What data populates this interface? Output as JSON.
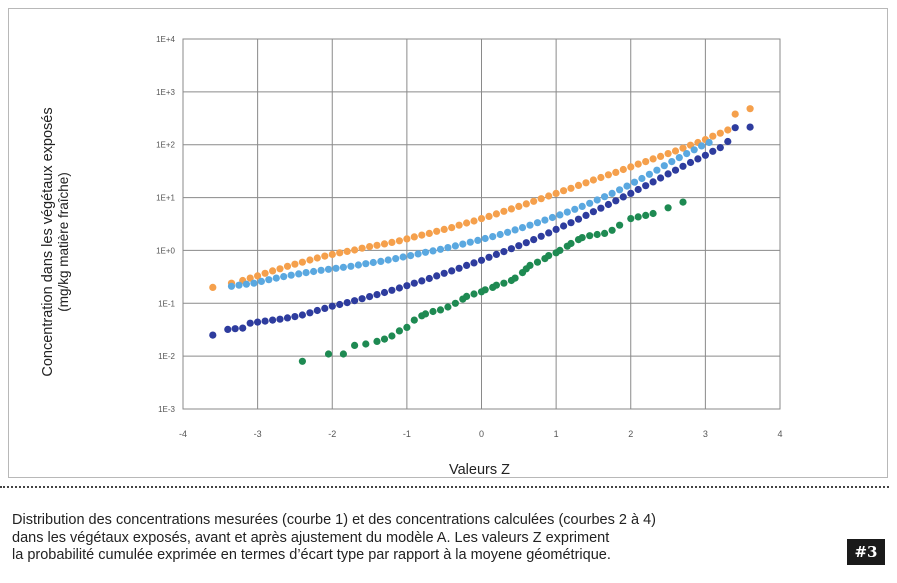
{
  "chart_data": {
    "type": "scatter",
    "title": "",
    "xlabel": "Valeurs Z",
    "ylabel_line1": "Concentration dans les végétaux exposés",
    "ylabel_line2": "(mg/kg matière fraîche)",
    "xlim": [
      -4,
      4
    ],
    "ylim": [
      0.001,
      10000
    ],
    "y_scale": "log",
    "grid": true,
    "legend": "none",
    "x_ticks": [
      "-4",
      "-3",
      "-2",
      "-1",
      "0",
      "1",
      "2",
      "3",
      "4"
    ],
    "y_ticks": [
      "1E-3",
      "1E-2",
      "1E-1",
      "1E+0",
      "1E+1",
      "1E+2",
      "1E+3",
      "1E+4"
    ],
    "series": [
      {
        "color": "#f5a04c",
        "points": [
          [
            -3.6,
            0.2
          ],
          [
            -3.35,
            0.24
          ],
          [
            -3.2,
            0.27
          ],
          [
            -3.1,
            0.3
          ],
          [
            -3.0,
            0.33
          ],
          [
            -2.9,
            0.37
          ],
          [
            -2.8,
            0.41
          ],
          [
            -2.7,
            0.45
          ],
          [
            -2.6,
            0.5
          ],
          [
            -2.5,
            0.55
          ],
          [
            -2.4,
            0.6
          ],
          [
            -2.3,
            0.66
          ],
          [
            -2.2,
            0.72
          ],
          [
            -2.1,
            0.78
          ],
          [
            -2.0,
            0.84
          ],
          [
            -1.9,
            0.9
          ],
          [
            -1.8,
            0.96
          ],
          [
            -1.7,
            1.02
          ],
          [
            -1.6,
            1.1
          ],
          [
            -1.5,
            1.18
          ],
          [
            -1.4,
            1.25
          ],
          [
            -1.3,
            1.33
          ],
          [
            -1.2,
            1.42
          ],
          [
            -1.1,
            1.52
          ],
          [
            -1.0,
            1.65
          ],
          [
            -0.9,
            1.8
          ],
          [
            -0.8,
            1.95
          ],
          [
            -0.7,
            2.1
          ],
          [
            -0.6,
            2.3
          ],
          [
            -0.5,
            2.5
          ],
          [
            -0.4,
            2.7
          ],
          [
            -0.3,
            3.0
          ],
          [
            -0.2,
            3.3
          ],
          [
            -0.1,
            3.6
          ],
          [
            0.0,
            4.0
          ],
          [
            0.1,
            4.4
          ],
          [
            0.2,
            4.9
          ],
          [
            0.3,
            5.5
          ],
          [
            0.4,
            6.1
          ],
          [
            0.5,
            6.8
          ],
          [
            0.6,
            7.6
          ],
          [
            0.7,
            8.5
          ],
          [
            0.8,
            9.5
          ],
          [
            0.9,
            10.7
          ],
          [
            1.0,
            12
          ],
          [
            1.1,
            13.5
          ],
          [
            1.2,
            15
          ],
          [
            1.3,
            17
          ],
          [
            1.4,
            19
          ],
          [
            1.5,
            21.5
          ],
          [
            1.6,
            24
          ],
          [
            1.7,
            27
          ],
          [
            1.8,
            30
          ],
          [
            1.9,
            34
          ],
          [
            2.0,
            38
          ],
          [
            2.1,
            43
          ],
          [
            2.2,
            48
          ],
          [
            2.3,
            54
          ],
          [
            2.4,
            60
          ],
          [
            2.5,
            68
          ],
          [
            2.6,
            76
          ],
          [
            2.7,
            86
          ],
          [
            2.8,
            98
          ],
          [
            2.9,
            110
          ],
          [
            3.0,
            125
          ],
          [
            3.1,
            145
          ],
          [
            3.2,
            165
          ],
          [
            3.3,
            190
          ],
          [
            3.4,
            380
          ],
          [
            3.6,
            480
          ]
        ]
      },
      {
        "color": "#5aa8e0",
        "points": [
          [
            -3.35,
            0.21
          ],
          [
            -3.25,
            0.22
          ],
          [
            -3.15,
            0.23
          ],
          [
            -3.05,
            0.24
          ],
          [
            -2.95,
            0.26
          ],
          [
            -2.85,
            0.28
          ],
          [
            -2.75,
            0.3
          ],
          [
            -2.65,
            0.32
          ],
          [
            -2.55,
            0.34
          ],
          [
            -2.45,
            0.36
          ],
          [
            -2.35,
            0.38
          ],
          [
            -2.25,
            0.4
          ],
          [
            -2.15,
            0.42
          ],
          [
            -2.05,
            0.44
          ],
          [
            -1.95,
            0.46
          ],
          [
            -1.85,
            0.48
          ],
          [
            -1.75,
            0.5
          ],
          [
            -1.65,
            0.53
          ],
          [
            -1.55,
            0.56
          ],
          [
            -1.45,
            0.59
          ],
          [
            -1.35,
            0.62
          ],
          [
            -1.25,
            0.66
          ],
          [
            -1.15,
            0.7
          ],
          [
            -1.05,
            0.75
          ],
          [
            -0.95,
            0.8
          ],
          [
            -0.85,
            0.86
          ],
          [
            -0.75,
            0.92
          ],
          [
            -0.65,
            0.98
          ],
          [
            -0.55,
            1.05
          ],
          [
            -0.45,
            1.13
          ],
          [
            -0.35,
            1.22
          ],
          [
            -0.25,
            1.32
          ],
          [
            -0.15,
            1.43
          ],
          [
            -0.05,
            1.55
          ],
          [
            0.05,
            1.68
          ],
          [
            0.15,
            1.83
          ],
          [
            0.25,
            2.0
          ],
          [
            0.35,
            2.2
          ],
          [
            0.45,
            2.45
          ],
          [
            0.55,
            2.7
          ],
          [
            0.65,
            3.0
          ],
          [
            0.75,
            3.35
          ],
          [
            0.85,
            3.75
          ],
          [
            0.95,
            4.2
          ],
          [
            1.05,
            4.7
          ],
          [
            1.15,
            5.3
          ],
          [
            1.25,
            6.0
          ],
          [
            1.35,
            6.8
          ],
          [
            1.45,
            7.8
          ],
          [
            1.55,
            9.0
          ],
          [
            1.65,
            10.4
          ],
          [
            1.75,
            12
          ],
          [
            1.85,
            14
          ],
          [
            1.95,
            16.5
          ],
          [
            2.05,
            19.5
          ],
          [
            2.15,
            23
          ],
          [
            2.25,
            27.5
          ],
          [
            2.35,
            33
          ],
          [
            2.45,
            40
          ],
          [
            2.55,
            48
          ],
          [
            2.65,
            57
          ],
          [
            2.75,
            68
          ],
          [
            2.85,
            80
          ],
          [
            2.95,
            95
          ],
          [
            3.05,
            110
          ]
        ]
      },
      {
        "color": "#2e3c9e",
        "points": [
          [
            -3.6,
            0.025
          ],
          [
            -3.4,
            0.032
          ],
          [
            -3.3,
            0.033
          ],
          [
            -3.2,
            0.034
          ],
          [
            -3.1,
            0.042
          ],
          [
            -3.0,
            0.044
          ],
          [
            -2.9,
            0.046
          ],
          [
            -2.8,
            0.048
          ],
          [
            -2.7,
            0.05
          ],
          [
            -2.6,
            0.053
          ],
          [
            -2.5,
            0.056
          ],
          [
            -2.4,
            0.06
          ],
          [
            -2.3,
            0.066
          ],
          [
            -2.2,
            0.073
          ],
          [
            -2.1,
            0.08
          ],
          [
            -2.0,
            0.088
          ],
          [
            -1.9,
            0.095
          ],
          [
            -1.8,
            0.103
          ],
          [
            -1.7,
            0.112
          ],
          [
            -1.6,
            0.122
          ],
          [
            -1.5,
            0.134
          ],
          [
            -1.4,
            0.146
          ],
          [
            -1.3,
            0.16
          ],
          [
            -1.2,
            0.176
          ],
          [
            -1.1,
            0.195
          ],
          [
            -1.0,
            0.215
          ],
          [
            -0.9,
            0.24
          ],
          [
            -0.8,
            0.265
          ],
          [
            -0.7,
            0.295
          ],
          [
            -0.6,
            0.33
          ],
          [
            -0.5,
            0.37
          ],
          [
            -0.4,
            0.41
          ],
          [
            -0.3,
            0.46
          ],
          [
            -0.2,
            0.52
          ],
          [
            -0.1,
            0.58
          ],
          [
            0.0,
            0.65
          ],
          [
            0.1,
            0.74
          ],
          [
            0.2,
            0.84
          ],
          [
            0.3,
            0.95
          ],
          [
            0.4,
            1.08
          ],
          [
            0.5,
            1.23
          ],
          [
            0.6,
            1.4
          ],
          [
            0.7,
            1.6
          ],
          [
            0.8,
            1.85
          ],
          [
            0.9,
            2.15
          ],
          [
            1.0,
            2.5
          ],
          [
            1.1,
            2.9
          ],
          [
            1.2,
            3.35
          ],
          [
            1.3,
            3.9
          ],
          [
            1.4,
            4.6
          ],
          [
            1.5,
            5.4
          ],
          [
            1.6,
            6.3
          ],
          [
            1.7,
            7.4
          ],
          [
            1.8,
            8.7
          ],
          [
            1.9,
            10.3
          ],
          [
            2.0,
            12
          ],
          [
            2.1,
            14.2
          ],
          [
            2.2,
            16.8
          ],
          [
            2.3,
            19.8
          ],
          [
            2.4,
            23.5
          ],
          [
            2.5,
            28
          ],
          [
            2.6,
            33
          ],
          [
            2.7,
            39
          ],
          [
            2.8,
            46
          ],
          [
            2.9,
            54
          ],
          [
            3.0,
            63
          ],
          [
            3.1,
            75
          ],
          [
            3.2,
            88
          ],
          [
            3.3,
            115
          ],
          [
            3.4,
            210
          ],
          [
            3.6,
            215
          ]
        ]
      },
      {
        "color": "#1e8a52",
        "points": [
          [
            -2.4,
            0.008
          ],
          [
            -2.05,
            0.011
          ],
          [
            -1.85,
            0.011
          ],
          [
            -1.7,
            0.016
          ],
          [
            -1.55,
            0.017
          ],
          [
            -1.4,
            0.019
          ],
          [
            -1.3,
            0.021
          ],
          [
            -1.2,
            0.024
          ],
          [
            -1.1,
            0.03
          ],
          [
            -1.0,
            0.035
          ],
          [
            -0.9,
            0.048
          ],
          [
            -0.8,
            0.058
          ],
          [
            -0.75,
            0.063
          ],
          [
            -0.65,
            0.07
          ],
          [
            -0.55,
            0.075
          ],
          [
            -0.45,
            0.085
          ],
          [
            -0.35,
            0.1
          ],
          [
            -0.25,
            0.12
          ],
          [
            -0.2,
            0.135
          ],
          [
            -0.1,
            0.15
          ],
          [
            0.0,
            0.165
          ],
          [
            0.05,
            0.18
          ],
          [
            0.15,
            0.2
          ],
          [
            0.2,
            0.22
          ],
          [
            0.3,
            0.24
          ],
          [
            0.4,
            0.27
          ],
          [
            0.45,
            0.3
          ],
          [
            0.55,
            0.38
          ],
          [
            0.6,
            0.45
          ],
          [
            0.65,
            0.52
          ],
          [
            0.75,
            0.6
          ],
          [
            0.85,
            0.7
          ],
          [
            0.9,
            0.8
          ],
          [
            1.0,
            0.9
          ],
          [
            1.05,
            1.0
          ],
          [
            1.15,
            1.2
          ],
          [
            1.2,
            1.35
          ],
          [
            1.3,
            1.6
          ],
          [
            1.35,
            1.75
          ],
          [
            1.45,
            1.9
          ],
          [
            1.55,
            2.0
          ],
          [
            1.65,
            2.1
          ],
          [
            1.75,
            2.4
          ],
          [
            1.85,
            3.0
          ],
          [
            2.0,
            4.0
          ],
          [
            2.1,
            4.3
          ],
          [
            2.2,
            4.6
          ],
          [
            2.3,
            5.0
          ],
          [
            2.5,
            6.4
          ],
          [
            2.7,
            8.2
          ]
        ]
      }
    ]
  },
  "caption": {
    "line1": "Distribution des concentrations mesurées (courbe 1) et des concentrations calculées (courbes 2 à 4)",
    "line2": "dans les végétaux exposés, avant et après ajustement du modèle A. Les valeurs Z expriment",
    "line3": "la probabilité cumulée exprimée en termes d’écart type par rapport à la moyene géométrique."
  },
  "badge": "#3"
}
